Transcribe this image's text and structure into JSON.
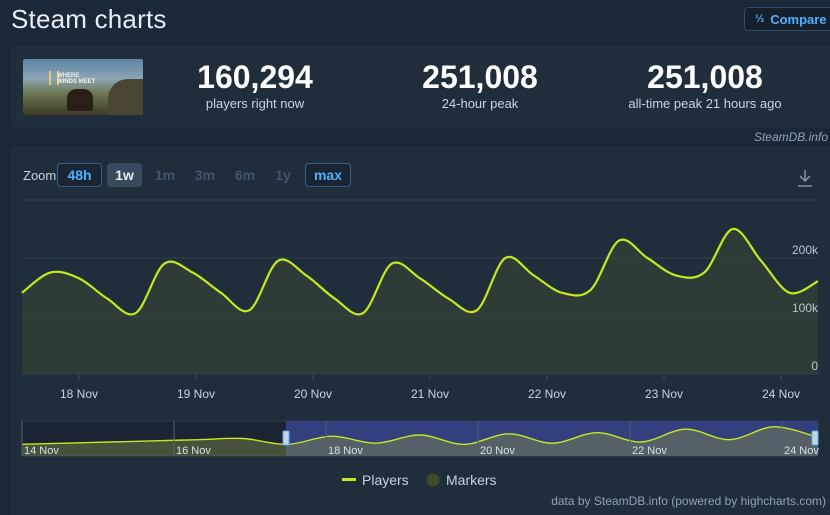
{
  "header": {
    "title": "Steam charts",
    "compare_label": "Compare",
    "compare_icon": "sort-numeric-icon"
  },
  "stats": [
    {
      "value": "160,294",
      "label": "players right now"
    },
    {
      "value": "251,008",
      "label": "24-hour peak"
    },
    {
      "value": "251,008",
      "label": "all-time peak 21 hours ago"
    }
  ],
  "game": {
    "logo_text": "WHERE WINDS MEET"
  },
  "credit_top": "SteamDB.info",
  "zoom": {
    "label": "Zoom",
    "buttons": [
      "48h",
      "1w",
      "1m",
      "3m",
      "6m",
      "1y",
      "max"
    ]
  },
  "legend": {
    "players": "Players",
    "markers": "Markers"
  },
  "credit_bottom": "data by SteamDB.info (powered by highcharts.com)",
  "colors": {
    "line": "#c5e81f",
    "accent": "#4fb0ff",
    "navigator_selection": "#38448c"
  },
  "chart_data": {
    "type": "area",
    "series": [
      {
        "name": "Players",
        "x": [
          "17 Nov 12:00",
          "17 Nov 18:00",
          "18 Nov 00:00",
          "18 Nov 06:00",
          "18 Nov 12:00",
          "18 Nov 18:00",
          "19 Nov 00:00",
          "19 Nov 06:00",
          "19 Nov 12:00",
          "19 Nov 18:00",
          "20 Nov 00:00",
          "20 Nov 06:00",
          "20 Nov 12:00",
          "20 Nov 18:00",
          "21 Nov 00:00",
          "21 Nov 06:00",
          "21 Nov 12:00",
          "21 Nov 18:00",
          "22 Nov 00:00",
          "22 Nov 06:00",
          "22 Nov 12:00",
          "22 Nov 18:00",
          "23 Nov 00:00",
          "23 Nov 06:00",
          "23 Nov 12:00",
          "23 Nov 18:00",
          "24 Nov 00:00",
          "24 Nov 06:00",
          "24 Nov 12:00"
        ],
        "values": [
          140000,
          175000,
          165000,
          130000,
          105000,
          190000,
          175000,
          140000,
          110000,
          195000,
          170000,
          130000,
          105000,
          190000,
          165000,
          130000,
          110000,
          200000,
          170000,
          140000,
          145000,
          230000,
          200000,
          170000,
          175000,
          250000,
          195000,
          140000,
          160000
        ]
      }
    ],
    "x_ticks": [
      "18 Nov",
      "19 Nov",
      "20 Nov",
      "21 Nov",
      "22 Nov",
      "23 Nov",
      "24 Nov"
    ],
    "y_ticks": [
      "0",
      "100k",
      "200k"
    ],
    "ylim": [
      0,
      300000
    ],
    "grid": true,
    "navigator": {
      "labels": [
        "14 Nov",
        "16 Nov",
        "18 Nov",
        "20 Nov",
        "22 Nov",
        "24 Nov"
      ],
      "values": [
        100000,
        110000,
        120000,
        130000,
        140000,
        150000,
        100000,
        170000,
        110000,
        180000,
        100000,
        190000,
        110000,
        200000,
        120000,
        230000,
        140000,
        250000,
        160000
      ]
    }
  }
}
